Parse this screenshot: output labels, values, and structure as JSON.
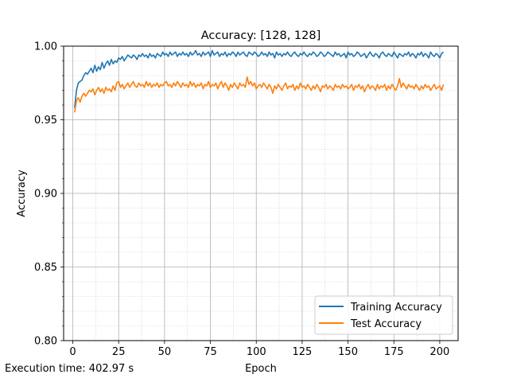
{
  "chart_data": {
    "type": "line",
    "title": "Accuracy: [128, 128]",
    "xlabel": "Epoch",
    "ylabel": "Accuracy",
    "xlim": [
      -5,
      210
    ],
    "ylim": [
      0.8,
      1.0
    ],
    "xticks": [
      0,
      25,
      50,
      75,
      100,
      125,
      150,
      175,
      200
    ],
    "yticks": [
      0.8,
      0.85,
      0.9,
      0.95,
      1.0
    ],
    "ytick_labels": [
      "0.80",
      "0.85",
      "0.90",
      "0.95",
      "1.00"
    ],
    "grid": {
      "major": true,
      "minor": true
    },
    "legend": "lower right",
    "series": [
      {
        "name": "Training Accuracy",
        "color": "#1f77b4",
        "x_start": 1,
        "values": [
          0.958,
          0.97,
          0.975,
          0.976,
          0.977,
          0.98,
          0.982,
          0.981,
          0.983,
          0.985,
          0.982,
          0.987,
          0.983,
          0.986,
          0.984,
          0.989,
          0.985,
          0.988,
          0.99,
          0.987,
          0.991,
          0.988,
          0.99,
          0.989,
          0.992,
          0.991,
          0.993,
          0.99,
          0.992,
          0.994,
          0.993,
          0.992,
          0.994,
          0.993,
          0.991,
          0.994,
          0.993,
          0.995,
          0.993,
          0.994,
          0.992,
          0.995,
          0.993,
          0.994,
          0.992,
          0.995,
          0.994,
          0.993,
          0.996,
          0.994,
          0.995,
          0.993,
          0.996,
          0.994,
          0.995,
          0.996,
          0.993,
          0.995,
          0.994,
          0.996,
          0.994,
          0.995,
          0.993,
          0.996,
          0.994,
          0.995,
          0.997,
          0.994,
          0.995,
          0.993,
          0.996,
          0.994,
          0.995,
          0.996,
          0.993,
          0.997,
          0.994,
          0.995,
          0.996,
          0.993,
          0.995,
          0.994,
          0.996,
          0.993,
          0.995,
          0.994,
          0.996,
          0.995,
          0.993,
          0.996,
          0.994,
          0.995,
          0.996,
          0.994,
          0.993,
          0.996,
          0.995,
          0.994,
          0.996,
          0.995,
          0.993,
          0.994,
          0.996,
          0.994,
          0.995,
          0.993,
          0.996,
          0.994,
          0.995,
          0.992,
          0.996,
          0.994,
          0.995,
          0.993,
          0.995,
          0.994,
          0.996,
          0.994,
          0.993,
          0.995,
          0.996,
          0.994,
          0.993,
          0.995,
          0.994,
          0.996,
          0.994,
          0.993,
          0.995,
          0.994,
          0.996,
          0.995,
          0.993,
          0.994,
          0.996,
          0.995,
          0.993,
          0.994,
          0.996,
          0.995,
          0.994,
          0.993,
          0.996,
          0.994,
          0.995,
          0.993,
          0.994,
          0.995,
          0.992,
          0.996,
          0.994,
          0.995,
          0.993,
          0.994,
          0.996,
          0.995,
          0.993,
          0.994,
          0.995,
          0.992,
          0.994,
          0.996,
          0.994,
          0.993,
          0.995,
          0.994,
          0.992,
          0.995,
          0.996,
          0.994,
          0.993,
          0.995,
          0.994,
          0.993,
          0.996,
          0.994,
          0.992,
          0.995,
          0.994,
          0.993,
          0.995,
          0.994,
          0.996,
          0.993,
          0.995,
          0.994,
          0.992,
          0.995,
          0.994,
          0.996,
          0.993,
          0.995,
          0.994,
          0.992,
          0.996,
          0.994,
          0.993,
          0.995,
          0.994,
          0.992,
          0.995,
          0.996
        ]
      },
      {
        "name": "Test Accuracy",
        "color": "#ff7f0e",
        "x_start": 1,
        "values": [
          0.955,
          0.963,
          0.965,
          0.962,
          0.966,
          0.968,
          0.966,
          0.968,
          0.97,
          0.969,
          0.971,
          0.967,
          0.97,
          0.972,
          0.969,
          0.971,
          0.968,
          0.972,
          0.97,
          0.971,
          0.969,
          0.973,
          0.97,
          0.975,
          0.976,
          0.972,
          0.974,
          0.971,
          0.973,
          0.975,
          0.972,
          0.974,
          0.976,
          0.973,
          0.972,
          0.975,
          0.973,
          0.974,
          0.972,
          0.976,
          0.973,
          0.975,
          0.972,
          0.974,
          0.973,
          0.975,
          0.972,
          0.974,
          0.973,
          0.975,
          0.976,
          0.973,
          0.974,
          0.972,
          0.975,
          0.973,
          0.976,
          0.974,
          0.972,
          0.975,
          0.973,
          0.974,
          0.972,
          0.976,
          0.973,
          0.975,
          0.972,
          0.974,
          0.973,
          0.975,
          0.971,
          0.974,
          0.973,
          0.976,
          0.972,
          0.974,
          0.973,
          0.975,
          0.971,
          0.974,
          0.976,
          0.972,
          0.975,
          0.973,
          0.97,
          0.974,
          0.972,
          0.975,
          0.973,
          0.971,
          0.975,
          0.973,
          0.974,
          0.972,
          0.979,
          0.974,
          0.976,
          0.973,
          0.975,
          0.971,
          0.973,
          0.974,
          0.972,
          0.975,
          0.973,
          0.971,
          0.974,
          0.972,
          0.968,
          0.973,
          0.971,
          0.974,
          0.972,
          0.97,
          0.973,
          0.975,
          0.971,
          0.973,
          0.972,
          0.974,
          0.97,
          0.973,
          0.971,
          0.975,
          0.972,
          0.973,
          0.971,
          0.974,
          0.972,
          0.97,
          0.973,
          0.971,
          0.974,
          0.972,
          0.969,
          0.973,
          0.972,
          0.974,
          0.971,
          0.973,
          0.972,
          0.97,
          0.974,
          0.972,
          0.973,
          0.971,
          0.974,
          0.972,
          0.973,
          0.971,
          0.972,
          0.974,
          0.97,
          0.973,
          0.972,
          0.974,
          0.971,
          0.973,
          0.969,
          0.972,
          0.974,
          0.971,
          0.973,
          0.972,
          0.97,
          0.974,
          0.971,
          0.973,
          0.972,
          0.974,
          0.97,
          0.973,
          0.971,
          0.974,
          0.972,
          0.97,
          0.973,
          0.978,
          0.972,
          0.975,
          0.973,
          0.971,
          0.974,
          0.972,
          0.973,
          0.971,
          0.974,
          0.972,
          0.97,
          0.973,
          0.971,
          0.974,
          0.972,
          0.973,
          0.97,
          0.972,
          0.974,
          0.971,
          0.972,
          0.973,
          0.97,
          0.974
        ]
      }
    ]
  },
  "footnote": "Execution time: 402.97 s"
}
